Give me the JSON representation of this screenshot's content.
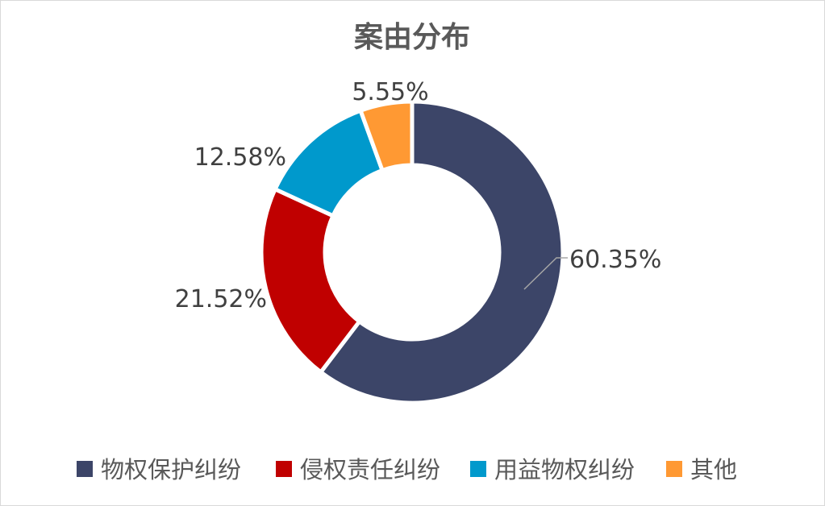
{
  "chart_data": {
    "type": "pie",
    "title": "案由分布",
    "categories": [
      "物权保护纠纷",
      "侵权责任纠纷",
      "用益物权纠纷",
      "其他"
    ],
    "values": [
      60.35,
      21.52,
      12.58,
      5.55
    ],
    "data_labels": [
      "60.35%",
      "21.52%",
      "12.58%",
      "5.55%"
    ],
    "colors": [
      "#3c4568",
      "#c00000",
      "#0099cc",
      "#ff9933"
    ],
    "legend_position": "bottom",
    "donut": true
  }
}
